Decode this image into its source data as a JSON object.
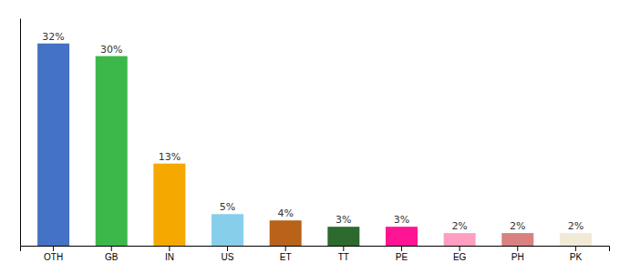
{
  "chart_data": {
    "type": "bar",
    "categories": [
      "OTH",
      "GB",
      "IN",
      "US",
      "ET",
      "TT",
      "PE",
      "EG",
      "PH",
      "PK"
    ],
    "values": [
      32,
      30,
      13,
      5,
      4,
      3,
      3,
      2,
      2,
      2
    ],
    "value_labels": [
      "32%",
      "30%",
      "13%",
      "5%",
      "4%",
      "3%",
      "3%",
      "2%",
      "2%",
      "2%"
    ],
    "colors": [
      "#4472c4",
      "#3cb84a",
      "#f5a800",
      "#87ceeb",
      "#b8621a",
      "#2d6a2d",
      "#ff1493",
      "#ff9ec0",
      "#d98080",
      "#f0ead6"
    ],
    "ylim": [
      0,
      36
    ],
    "tick_labels": "x"
  }
}
